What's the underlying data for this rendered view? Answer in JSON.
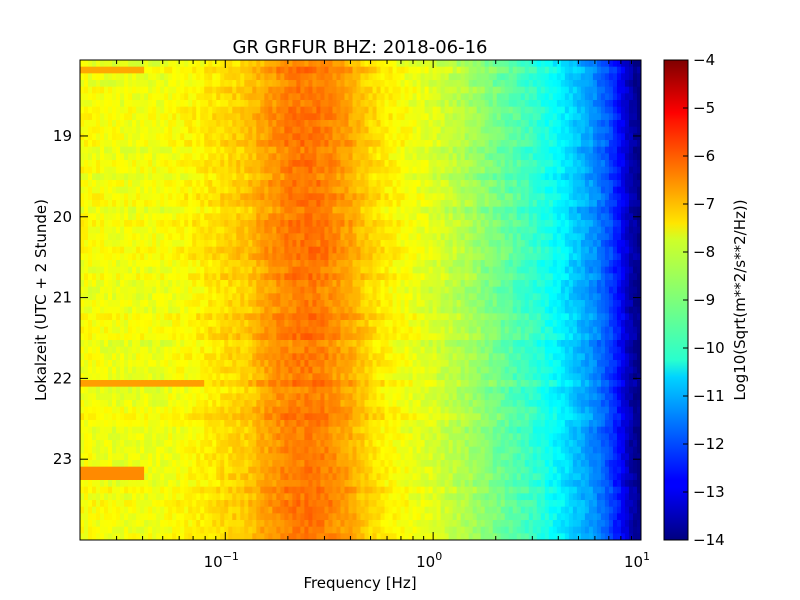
{
  "chart_data": {
    "type": "heatmap",
    "title": "GR GRFUR BHZ: 2018-06-16",
    "xlabel": "Frequency [Hz]",
    "ylabel": "Lokalzeit (UTC + 2 Stunde)",
    "x_scale": "log",
    "xlim": [
      0.02,
      10
    ],
    "ylim": [
      24,
      18.06
    ],
    "x_ticks": [
      {
        "value": 0.1,
        "base": "10",
        "exp": "−1"
      },
      {
        "value": 1,
        "base": "10",
        "exp": "0"
      },
      {
        "value": 10,
        "base": "10",
        "exp": "1"
      }
    ],
    "y_ticks": [
      {
        "value": 19,
        "label": "19"
      },
      {
        "value": 20,
        "label": "20"
      },
      {
        "value": 21,
        "label": "21"
      },
      {
        "value": 22,
        "label": "22"
      },
      {
        "value": 23,
        "label": "23"
      }
    ],
    "colorbar": {
      "label": "Log10(Sqrt(m**2/s**2/Hz))",
      "colormap": "jet",
      "range": [
        -14,
        -4
      ],
      "ticks": [
        {
          "value": -4,
          "label": "−4"
        },
        {
          "value": -5,
          "label": "−5"
        },
        {
          "value": -6,
          "label": "−6"
        },
        {
          "value": -7,
          "label": "−7"
        },
        {
          "value": -8,
          "label": "−8"
        },
        {
          "value": -9,
          "label": "−9"
        },
        {
          "value": -10,
          "label": "−10"
        },
        {
          "value": -11,
          "label": "−11"
        },
        {
          "value": -12,
          "label": "−12"
        },
        {
          "value": -13,
          "label": "−13"
        },
        {
          "value": -14,
          "label": "−14"
        }
      ]
    },
    "spectrum_profile": {
      "frequencies": [
        0.02,
        0.03,
        0.05,
        0.08,
        0.1,
        0.13,
        0.15,
        0.2,
        0.25,
        0.3,
        0.4,
        0.5,
        0.7,
        1,
        1.5,
        2,
        3,
        4,
        5,
        6,
        7,
        8,
        9,
        10
      ],
      "values": [
        -7.8,
        -7.9,
        -7.9,
        -7.6,
        -7.4,
        -7.2,
        -6.9,
        -6.5,
        -6.4,
        -6.5,
        -6.9,
        -7.4,
        -7.8,
        -8.1,
        -8.6,
        -9.1,
        -9.7,
        -10.3,
        -10.9,
        -11.4,
        -12,
        -12.8,
        -13.6,
        -14
      ]
    },
    "events": [
      {
        "time": 22.08,
        "fmax": 0.08,
        "value": -6.8
      },
      {
        "time": 23.17,
        "fmax": 0.04,
        "value": -6.6
      },
      {
        "time": 18.18,
        "fmax": 0.04,
        "value": -6.9
      }
    ]
  }
}
